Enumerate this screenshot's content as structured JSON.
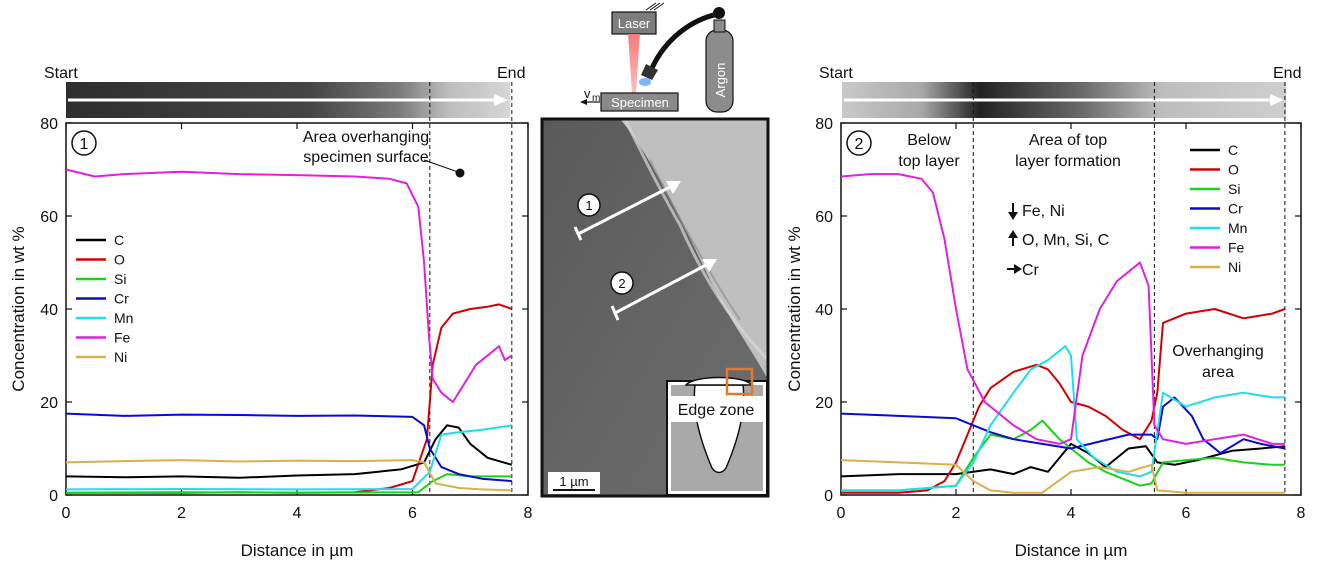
{
  "colors": {
    "C": "#000000",
    "O": "#d40000",
    "Si": "#1bd11b",
    "Cr": "#0a0ad0",
    "Mn": "#1be0e8",
    "Fe": "#e020e0",
    "Ni": "#d8b14a",
    "box": "#e07b2c"
  },
  "legend_items": [
    "C",
    "O",
    "Si",
    "Cr",
    "Mn",
    "Fe",
    "Ni"
  ],
  "strip_labels": {
    "start": "Start",
    "end": "End"
  },
  "schematic": {
    "laser": "Laser",
    "argon": "Argon",
    "specimen": "Specimen",
    "velocity": "v",
    "velocity_sub": "m"
  },
  "sem": {
    "scale_bar": "1 µm",
    "edge_zone": "Edge zone",
    "marker1": "1",
    "marker2": "2"
  },
  "chart_data": [
    {
      "type": "line",
      "panel_marker": "1",
      "xlabel": "Distance in µm",
      "ylabel": "Concentration in wt %",
      "xlim": [
        0,
        8
      ],
      "ylim": [
        0,
        80
      ],
      "xticks": [
        0,
        2,
        4,
        6,
        8
      ],
      "yticks": [
        0,
        20,
        40,
        60,
        80
      ],
      "dashed_lines_x": [
        6.3,
        7.72
      ],
      "annotation": [
        "Area overhanging",
        "specimen surface"
      ],
      "legend_position": "middle-left",
      "series": [
        {
          "name": "C",
          "x": [
            0,
            1,
            2,
            3,
            4,
            5,
            5.8,
            6.2,
            6.4,
            6.6,
            6.8,
            7.0,
            7.3,
            7.72
          ],
          "values": [
            4.0,
            3.8,
            4.0,
            3.7,
            4.2,
            4.5,
            5.5,
            7.0,
            12.0,
            15.0,
            14.5,
            11.0,
            8.0,
            6.5
          ]
        },
        {
          "name": "O",
          "x": [
            0,
            1,
            2,
            3,
            4,
            5,
            5.6,
            6.0,
            6.25,
            6.35,
            6.5,
            6.7,
            7.0,
            7.3,
            7.5,
            7.72
          ],
          "values": [
            0.5,
            0.5,
            0.5,
            0.6,
            0.5,
            0.6,
            1.5,
            3.0,
            12.0,
            28.0,
            36.0,
            39.0,
            40.0,
            40.5,
            41.0,
            40.0
          ]
        },
        {
          "name": "Si",
          "x": [
            0,
            2,
            4,
            6.1,
            6.35,
            6.6,
            7.0,
            7.72
          ],
          "values": [
            0.5,
            0.6,
            0.5,
            0.6,
            3.0,
            4.5,
            4.0,
            4.0
          ]
        },
        {
          "name": "Cr",
          "x": [
            0,
            1,
            2,
            3,
            4,
            5,
            6.0,
            6.2,
            6.3,
            6.5,
            6.8,
            7.2,
            7.72
          ],
          "values": [
            17.5,
            17.0,
            17.3,
            17.2,
            17.0,
            17.1,
            16.8,
            15.0,
            10.0,
            6.0,
            4.5,
            3.5,
            3.0
          ]
        },
        {
          "name": "Mn",
          "x": [
            0,
            2,
            4,
            6.0,
            6.3,
            6.5,
            6.8,
            7.2,
            7.72
          ],
          "values": [
            1.2,
            1.3,
            1.2,
            1.3,
            5.0,
            13.0,
            13.5,
            14.0,
            15.0
          ]
        },
        {
          "name": "Fe",
          "x": [
            0,
            0.5,
            1,
            2,
            3,
            4,
            5,
            5.6,
            5.9,
            6.1,
            6.2,
            6.28,
            6.35,
            6.5,
            6.7,
            6.9,
            7.1,
            7.3,
            7.5,
            7.6,
            7.72
          ],
          "values": [
            70.0,
            68.5,
            69.0,
            69.5,
            69.0,
            68.8,
            68.5,
            68.0,
            67.0,
            62.0,
            50.0,
            35.0,
            25.0,
            22.0,
            20.0,
            24.0,
            28.0,
            30.0,
            32.0,
            29.0,
            30.0
          ]
        },
        {
          "name": "Ni",
          "x": [
            0,
            1,
            2,
            3,
            4,
            5,
            6.0,
            6.2,
            6.4,
            6.8,
            7.2,
            7.72
          ],
          "values": [
            7.0,
            7.3,
            7.5,
            7.2,
            7.4,
            7.3,
            7.5,
            7.0,
            2.5,
            1.5,
            1.2,
            1.0
          ]
        }
      ]
    },
    {
      "type": "line",
      "panel_marker": "2",
      "xlabel": "Distance in µm",
      "ylabel": "Concentration in wt %",
      "xlim": [
        0,
        8
      ],
      "ylim": [
        0,
        80
      ],
      "xticks": [
        0,
        2,
        4,
        6,
        8
      ],
      "yticks": [
        0,
        20,
        40,
        60,
        80
      ],
      "dashed_lines_x": [
        2.3,
        5.45,
        7.72
      ],
      "region_labels": [
        [
          "Below",
          "top layer"
        ],
        [
          "Area of top",
          "layer formation"
        ],
        [
          "Overhanging",
          "area"
        ]
      ],
      "trend_labels": [
        {
          "arrow": "down",
          "text": "Fe, Ni"
        },
        {
          "arrow": "up",
          "text": "O, Mn, Si, C"
        },
        {
          "arrow": "right",
          "text": "Cr"
        }
      ],
      "legend_position": "top-right",
      "series": [
        {
          "name": "C",
          "x": [
            0,
            1,
            2,
            2.3,
            2.6,
            3.0,
            3.3,
            3.6,
            4.0,
            4.3,
            4.6,
            5.0,
            5.3,
            5.5,
            5.8,
            6.2,
            6.8,
            7.3,
            7.72
          ],
          "values": [
            4.0,
            4.5,
            4.5,
            5.0,
            5.5,
            4.5,
            6.0,
            5.0,
            11.0,
            9.0,
            6.0,
            10.0,
            10.5,
            7.0,
            6.5,
            7.5,
            9.5,
            10.0,
            10.5
          ]
        },
        {
          "name": "O",
          "x": [
            0,
            1,
            1.5,
            1.8,
            2.0,
            2.2,
            2.4,
            2.6,
            3.0,
            3.4,
            3.6,
            3.8,
            4.0,
            4.3,
            4.6,
            4.9,
            5.2,
            5.4,
            5.5,
            5.6,
            6.0,
            6.5,
            7.0,
            7.5,
            7.72
          ],
          "values": [
            0.5,
            0.5,
            1.0,
            3.0,
            7.0,
            13.0,
            19.0,
            23.0,
            26.5,
            28.0,
            27.0,
            24.0,
            20.0,
            19.0,
            17.0,
            14.0,
            12.0,
            16.0,
            22.0,
            37.0,
            39.0,
            40.0,
            38.0,
            39.0,
            40.0
          ]
        },
        {
          "name": "Si",
          "x": [
            0,
            1,
            2,
            2.3,
            2.6,
            3.0,
            3.3,
            3.5,
            3.8,
            4.0,
            4.3,
            4.6,
            5.0,
            5.2,
            5.4,
            5.6,
            6.0,
            6.5,
            7.0,
            7.5,
            7.72
          ],
          "values": [
            1.0,
            1.0,
            2.0,
            8.0,
            13.0,
            12.0,
            14.0,
            16.0,
            12.0,
            10.0,
            7.0,
            5.0,
            3.0,
            2.0,
            2.5,
            7.0,
            7.5,
            8.0,
            7.0,
            6.5,
            6.5
          ]
        },
        {
          "name": "Cr",
          "x": [
            0,
            1,
            2,
            2.3,
            2.6,
            3.0,
            3.5,
            4.0,
            4.5,
            5.0,
            5.4,
            5.5,
            5.6,
            5.8,
            6.1,
            6.3,
            6.6,
            7.0,
            7.3,
            7.72
          ],
          "values": [
            17.5,
            17.0,
            16.5,
            15.0,
            13.5,
            12.0,
            11.0,
            10.0,
            11.5,
            13.0,
            13.0,
            12.0,
            19.0,
            21.0,
            17.0,
            12.0,
            9.0,
            12.0,
            11.0,
            10.0
          ]
        },
        {
          "name": "Mn",
          "x": [
            0,
            1,
            2,
            2.3,
            2.6,
            3.0,
            3.3,
            3.6,
            3.9,
            4.0,
            4.1,
            4.4,
            4.8,
            5.2,
            5.4,
            5.6,
            6.0,
            6.5,
            7.0,
            7.5,
            7.72
          ],
          "values": [
            1.0,
            1.0,
            2.0,
            7.0,
            15.0,
            22.0,
            27.0,
            29.0,
            32.0,
            30.0,
            12.0,
            8.0,
            5.0,
            4.0,
            5.0,
            22.0,
            19.0,
            21.0,
            22.0,
            21.0,
            21.0
          ]
        },
        {
          "name": "Fe",
          "x": [
            0,
            0.5,
            1,
            1.4,
            1.6,
            1.8,
            2.0,
            2.2,
            2.5,
            3.0,
            3.4,
            3.8,
            4.0,
            4.2,
            4.5,
            4.8,
            5.0,
            5.2,
            5.35,
            5.45,
            5.6,
            6.0,
            6.5,
            7.0,
            7.5,
            7.72
          ],
          "values": [
            68.5,
            69.0,
            69.0,
            68.0,
            65.0,
            55.0,
            40.0,
            27.0,
            20.0,
            15.0,
            12.0,
            11.0,
            12.0,
            30.0,
            40.0,
            46.0,
            48.0,
            50.0,
            45.0,
            15.0,
            12.0,
            11.0,
            12.0,
            13.0,
            11.0,
            11.0
          ]
        },
        {
          "name": "Ni",
          "x": [
            0,
            1,
            2,
            2.3,
            2.6,
            3.0,
            3.5,
            4.0,
            4.5,
            5.0,
            5.4,
            5.5,
            6.0,
            6.5,
            7.0,
            7.72
          ],
          "values": [
            7.5,
            7.0,
            6.5,
            3.0,
            1.0,
            0.5,
            0.5,
            5.0,
            6.0,
            5.0,
            6.5,
            1.0,
            0.5,
            0.5,
            0.5,
            0.5
          ]
        }
      ]
    }
  ]
}
